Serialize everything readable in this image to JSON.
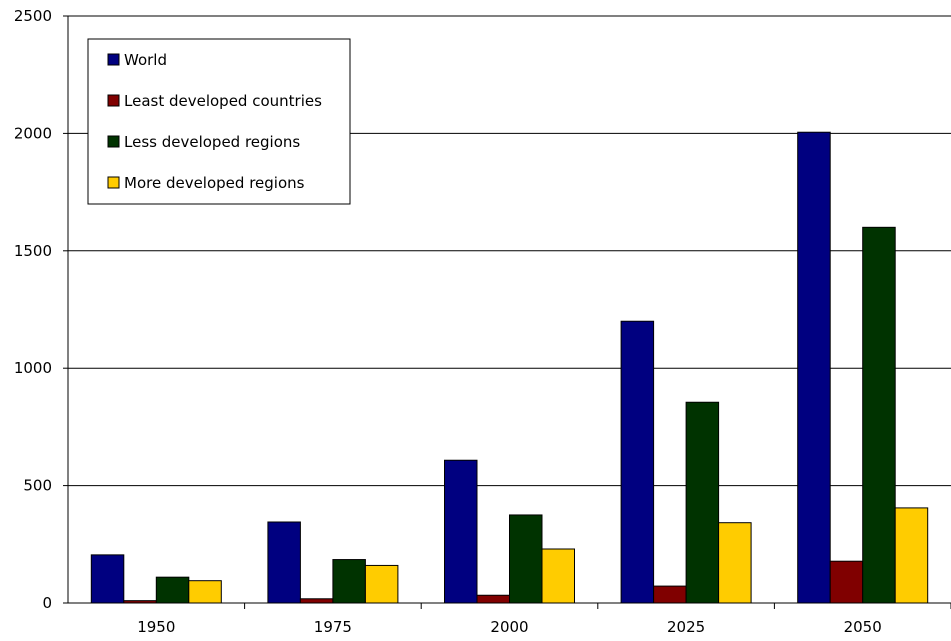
{
  "chart_data": {
    "type": "bar",
    "title": "",
    "xlabel": "",
    "ylabel": "",
    "categories": [
      "1950",
      "1975",
      "2000",
      "2025",
      "2050"
    ],
    "series": [
      {
        "name": "World",
        "color": "#000080",
        "values": [
          205,
          345,
          608,
          1200,
          2005
        ]
      },
      {
        "name": "Least developed countries",
        "color": "#800000",
        "values": [
          10,
          18,
          33,
          72,
          178
        ]
      },
      {
        "name": "Less developed regions",
        "color": "#003300",
        "values": [
          110,
          185,
          375,
          855,
          1600
        ]
      },
      {
        "name": "More developed regions",
        "color": "#ffcc00",
        "values": [
          95,
          160,
          230,
          342,
          405
        ]
      }
    ],
    "ylim": [
      0,
      2500
    ],
    "yticks": [
      "0",
      "500",
      "1000",
      "1500",
      "2000",
      "2500"
    ],
    "grid": true,
    "legend_position": "top-left"
  }
}
